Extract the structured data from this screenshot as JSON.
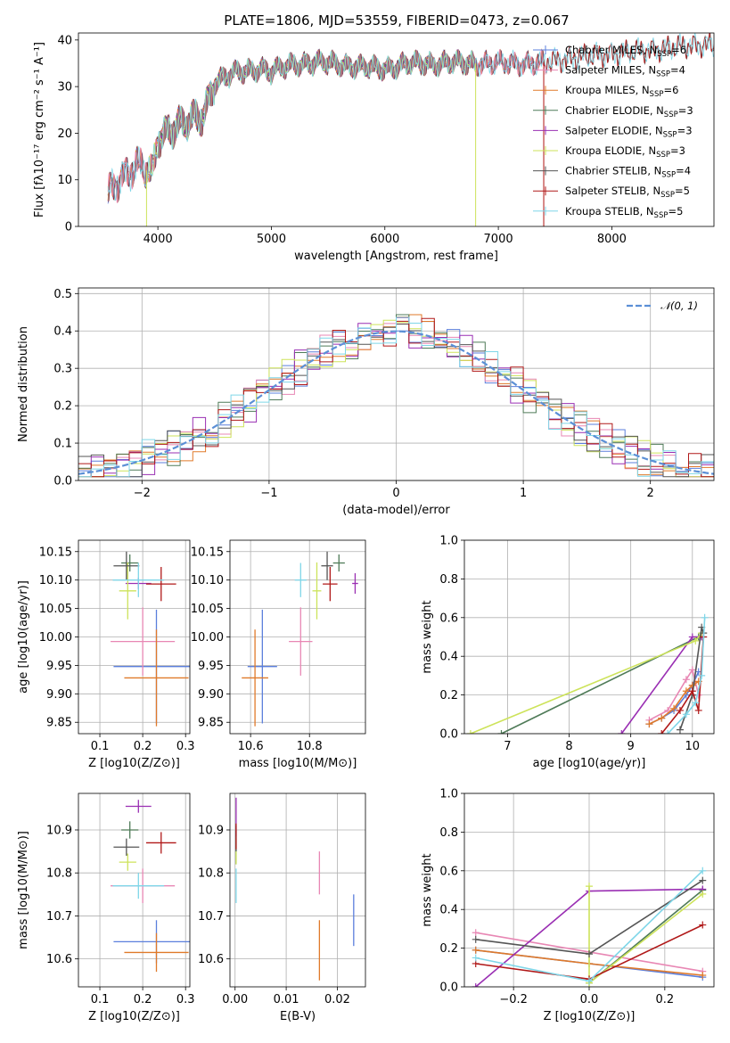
{
  "title": "PLATE=1806, MJD=53559, FIBERID=0473, z=0.067",
  "colors": {
    "Chabrier MILES": "#5b7fdc",
    "Salpeter MILES": "#e887b4",
    "Kroupa MILES": "#e07a2a",
    "Chabrier ELODIE": "#4f7b58",
    "Salpeter ELODIE": "#9a2fb3",
    "Kroupa ELODIE": "#cde35a",
    "Chabrier STELIB": "#555555",
    "Salpeter STELIB": "#b01818",
    "Kroupa STELIB": "#7fd6e8",
    "Gaussian": "#5b8fd6"
  },
  "chart_data": [
    {
      "id": "spectrum",
      "type": "line",
      "xlabel": "wavelength [Angstrom, rest frame]",
      "ylabel": "Flux [fλ10⁻¹⁷ erg cm⁻² s⁻¹ A⁻¹]",
      "xlim": [
        3300,
        8900
      ],
      "ylim": [
        0,
        41.5
      ],
      "xticks": [
        4000,
        5000,
        6000,
        7000,
        8000
      ],
      "yticks": [
        0,
        10,
        20,
        30,
        40
      ],
      "grid": false,
      "legend_position": "top-right",
      "continuum_anchors": {
        "x": [
          3560,
          3650,
          3750,
          3850,
          3950,
          4000,
          4100,
          4250,
          4400,
          4500,
          4700,
          4900,
          5000,
          5200,
          5400,
          5600,
          5800,
          6000,
          6300,
          6600,
          6800,
          7000,
          7200,
          7400,
          7600,
          8000,
          8400,
          8800
        ],
        "y": [
          7,
          10,
          12,
          13,
          11,
          19,
          21,
          22,
          24,
          31,
          33,
          34,
          33,
          35,
          35,
          35,
          34,
          34,
          35,
          35,
          35,
          35,
          35,
          35,
          36,
          37,
          38,
          39
        ]
      },
      "series": [
        {
          "name": "Chabrier MILES",
          "nssp": "6"
        },
        {
          "name": "Salpeter MILES",
          "nssp": "4"
        },
        {
          "name": "Kroupa MILES",
          "nssp": "6"
        },
        {
          "name": "Chabrier ELODIE",
          "nssp": "3"
        },
        {
          "name": "Salpeter ELODIE",
          "nssp": "3"
        },
        {
          "name": "Kroupa ELODIE",
          "nssp": "3"
        },
        {
          "name": "Chabrier STELIB",
          "nssp": "4"
        },
        {
          "name": "Salpeter STELIB",
          "nssp": "5"
        },
        {
          "name": "Kroupa STELIB",
          "nssp": "5"
        }
      ]
    },
    {
      "id": "residuals",
      "type": "histogram",
      "xlabel": "(data-model)/error",
      "ylabel": "Normed distribution",
      "xlim": [
        -2.5,
        2.5
      ],
      "ylim": [
        0,
        0.515
      ],
      "xticks": [
        -2,
        -1,
        0,
        1,
        2
      ],
      "yticks": [
        0.0,
        0.1,
        0.2,
        0.3,
        0.4,
        0.5
      ],
      "grid": true,
      "legend": [
        "𝒩(0, 1)"
      ],
      "legend_position": "top-right",
      "bin_width": 0.1,
      "bin_start": -2.5
    },
    {
      "id": "age_vs_Z",
      "type": "errorbar",
      "xlabel": "Z [log10(Z/Z⊙)]",
      "ylabel": "age  [log10(age/yr)]",
      "xlim": [
        0.05,
        0.31
      ],
      "ylim": [
        9.83,
        10.17
      ],
      "xticks": [
        0.1,
        0.2,
        0.3
      ],
      "yticks": [
        9.85,
        9.9,
        9.95,
        10.0,
        10.05,
        10.1,
        10.15
      ],
      "grid": true,
      "points": [
        {
          "series": "Chabrier MILES",
          "x": 0.232,
          "y": 9.948,
          "xerr": 0.1,
          "yerr": 0.1
        },
        {
          "series": "Salpeter MILES",
          "x": 0.2,
          "y": 9.992,
          "xerr": 0.075,
          "yerr": 0.06
        },
        {
          "series": "Kroupa MILES",
          "x": 0.232,
          "y": 9.928,
          "xerr": 0.075,
          "yerr": 0.085
        },
        {
          "series": "Chabrier ELODIE",
          "x": 0.17,
          "y": 10.13,
          "xerr": 0.02,
          "yerr": 0.015
        },
        {
          "series": "Salpeter ELODIE",
          "x": 0.19,
          "y": 10.094,
          "xerr": 0.03,
          "yerr": 0.01
        },
        {
          "series": "Kroupa ELODIE",
          "x": 0.165,
          "y": 10.081,
          "xerr": 0.02,
          "yerr": 0.05
        },
        {
          "series": "Chabrier STELIB",
          "x": 0.162,
          "y": 10.125,
          "xerr": 0.03,
          "yerr": 0.025
        },
        {
          "series": "Salpeter STELIB",
          "x": 0.243,
          "y": 10.093,
          "xerr": 0.035,
          "yerr": 0.03
        },
        {
          "series": "Kroupa STELIB",
          "x": 0.19,
          "y": 10.1,
          "xerr": 0.06,
          "yerr": 0.03
        }
      ]
    },
    {
      "id": "age_vs_mass",
      "type": "errorbar",
      "xlabel": "mass [log10(M/M⊙)]",
      "ylabel": "",
      "xlim": [
        10.53,
        10.99
      ],
      "ylim": [
        9.83,
        10.17
      ],
      "xticks": [
        10.6,
        10.8
      ],
      "yticks": [
        9.85,
        9.9,
        9.95,
        10.0,
        10.05,
        10.1,
        10.15
      ],
      "grid": true,
      "points": [
        {
          "series": "Chabrier MILES",
          "x": 10.64,
          "y": 9.948,
          "xerr": 0.05,
          "yerr": 0.1
        },
        {
          "series": "Salpeter MILES",
          "x": 10.77,
          "y": 9.992,
          "xerr": 0.04,
          "yerr": 0.06
        },
        {
          "series": "Kroupa MILES",
          "x": 10.615,
          "y": 9.928,
          "xerr": 0.045,
          "yerr": 0.085
        },
        {
          "series": "Chabrier ELODIE",
          "x": 10.9,
          "y": 10.13,
          "xerr": 0.02,
          "yerr": 0.015
        },
        {
          "series": "Salpeter ELODIE",
          "x": 10.955,
          "y": 10.094,
          "xerr": 0.01,
          "yerr": 0.018
        },
        {
          "series": "Kroupa ELODIE",
          "x": 10.825,
          "y": 10.081,
          "xerr": 0.015,
          "yerr": 0.05
        },
        {
          "series": "Chabrier STELIB",
          "x": 10.86,
          "y": 10.125,
          "xerr": 0.02,
          "yerr": 0.025
        },
        {
          "series": "Salpeter STELIB",
          "x": 10.87,
          "y": 10.093,
          "xerr": 0.025,
          "yerr": 0.03
        },
        {
          "series": "Kroupa STELIB",
          "x": 10.77,
          "y": 10.1,
          "xerr": 0.02,
          "yerr": 0.03
        }
      ]
    },
    {
      "id": "weight_vs_age",
      "type": "line",
      "xlabel": "age  [log10(age/yr)]",
      "ylabel": "mass weight",
      "xlim": [
        6.3,
        10.35
      ],
      "ylim": [
        0,
        1.0
      ],
      "xticks": [
        7,
        8,
        9,
        10
      ],
      "yticks": [
        0.0,
        0.2,
        0.4,
        0.6,
        0.8,
        1.0
      ],
      "grid": true,
      "series": [
        {
          "name": "Chabrier MILES",
          "x": [
            9.3,
            9.5,
            9.7,
            9.9,
            10.0,
            10.1
          ],
          "y": [
            0.05,
            0.08,
            0.12,
            0.2,
            0.25,
            0.32
          ]
        },
        {
          "name": "Salpeter MILES",
          "x": [
            9.3,
            9.6,
            9.9,
            10.0,
            10.1
          ],
          "y": [
            0.07,
            0.12,
            0.28,
            0.33,
            0.2
          ]
        },
        {
          "name": "Kroupa MILES",
          "x": [
            9.3,
            9.5,
            9.7,
            9.9,
            10.0,
            10.1
          ],
          "y": [
            0.05,
            0.08,
            0.13,
            0.22,
            0.25,
            0.27
          ]
        },
        {
          "name": "Chabrier ELODIE",
          "x": [
            6.9,
            10.1,
            10.15
          ],
          "y": [
            0.0,
            0.5,
            0.5
          ]
        },
        {
          "name": "Salpeter ELODIE",
          "x": [
            8.85,
            10.0,
            10.15
          ],
          "y": [
            0.0,
            0.5,
            0.5
          ]
        },
        {
          "name": "Kroupa ELODIE",
          "x": [
            6.4,
            10.05,
            10.15
          ],
          "y": [
            0.0,
            0.48,
            0.52
          ]
        },
        {
          "name": "Chabrier STELIB",
          "x": [
            9.8,
            10.0,
            10.15,
            10.18
          ],
          "y": [
            0.02,
            0.2,
            0.55,
            0.52
          ]
        },
        {
          "name": "Salpeter STELIB",
          "x": [
            9.5,
            9.8,
            10.0,
            10.1,
            10.18
          ],
          "y": [
            0.0,
            0.12,
            0.22,
            0.12,
            0.5
          ]
        },
        {
          "name": "Kroupa STELIB",
          "x": [
            9.6,
            9.9,
            10.05,
            10.15,
            10.2
          ],
          "y": [
            0.0,
            0.1,
            0.16,
            0.3,
            0.6
          ]
        }
      ]
    },
    {
      "id": "mass_vs_Z",
      "type": "errorbar",
      "xlabel": "Z [log10(Z/Z⊙)]",
      "ylabel": "mass [log10(M/M⊙)]",
      "xlim": [
        0.05,
        0.31
      ],
      "ylim": [
        10.535,
        10.985
      ],
      "xticks": [
        0.1,
        0.2,
        0.3
      ],
      "yticks": [
        10.6,
        10.7,
        10.8,
        10.9
      ],
      "grid": true,
      "points": [
        {
          "series": "Chabrier MILES",
          "x": 0.232,
          "y": 10.64,
          "xerr": 0.1,
          "yerr": 0.05
        },
        {
          "series": "Salpeter MILES",
          "x": 0.2,
          "y": 10.77,
          "xerr": 0.075,
          "yerr": 0.04
        },
        {
          "series": "Kroupa MILES",
          "x": 0.232,
          "y": 10.615,
          "xerr": 0.075,
          "yerr": 0.045
        },
        {
          "series": "Chabrier ELODIE",
          "x": 0.17,
          "y": 10.9,
          "xerr": 0.02,
          "yerr": 0.02
        },
        {
          "series": "Salpeter ELODIE",
          "x": 0.19,
          "y": 10.955,
          "xerr": 0.03,
          "yerr": 0.015
        },
        {
          "series": "Kroupa ELODIE",
          "x": 0.165,
          "y": 10.825,
          "xerr": 0.02,
          "yerr": 0.02
        },
        {
          "series": "Chabrier STELIB",
          "x": 0.162,
          "y": 10.86,
          "xerr": 0.03,
          "yerr": 0.02
        },
        {
          "series": "Salpeter STELIB",
          "x": 0.243,
          "y": 10.87,
          "xerr": 0.035,
          "yerr": 0.025
        },
        {
          "series": "Kroupa STELIB",
          "x": 0.19,
          "y": 10.77,
          "xerr": 0.06,
          "yerr": 0.03
        }
      ]
    },
    {
      "id": "mass_vs_EBV",
      "type": "errorbar",
      "xlabel": "E(B-V)",
      "ylabel": "",
      "xlim": [
        -0.001,
        0.0255
      ],
      "ylim": [
        10.535,
        10.985
      ],
      "xticks": [
        0.0,
        0.01,
        0.02
      ],
      "yticks": [
        10.6,
        10.7,
        10.8,
        10.9
      ],
      "grid": true,
      "points": [
        {
          "series": "Chabrier MILES",
          "x": 0.0232,
          "y": 10.69,
          "xerr": 0,
          "yerr": 0.06
        },
        {
          "series": "Salpeter MILES",
          "x": 0.0165,
          "y": 10.8,
          "xerr": 0,
          "yerr": 0.05
        },
        {
          "series": "Kroupa MILES",
          "x": 0.0165,
          "y": 10.62,
          "xerr": 0,
          "yerr": 0.07
        },
        {
          "series": "Chabrier ELODIE",
          "x": 0.0002,
          "y": 10.86,
          "xerr": 0,
          "yerr": 0.04
        },
        {
          "series": "Salpeter ELODIE",
          "x": 0.0002,
          "y": 10.93,
          "xerr": 0,
          "yerr": 0.045
        },
        {
          "series": "Kroupa ELODIE",
          "x": 0.0002,
          "y": 10.85,
          "xerr": 0,
          "yerr": 0.03
        },
        {
          "series": "Chabrier STELIB",
          "x": 0.0002,
          "y": 10.88,
          "xerr": 0,
          "yerr": 0.03
        },
        {
          "series": "Salpeter STELIB",
          "x": 0.0002,
          "y": 10.885,
          "xerr": 0,
          "yerr": 0.03
        },
        {
          "series": "Kroupa STELIB",
          "x": 0.0002,
          "y": 10.77,
          "xerr": 0,
          "yerr": 0.04
        }
      ]
    },
    {
      "id": "weight_vs_Z",
      "type": "line",
      "xlabel": "Z [log10(Z/Z⊙)]",
      "ylabel": "mass weight",
      "xlim": [
        -0.33,
        0.33
      ],
      "ylim": [
        0,
        1.0
      ],
      "xticks": [
        -0.2,
        0.0,
        0.2
      ],
      "yticks": [
        0.0,
        0.2,
        0.4,
        0.6,
        0.8,
        1.0
      ],
      "grid": true,
      "series": [
        {
          "name": "Chabrier MILES",
          "x": [
            -0.3,
            0.0,
            0.3
          ],
          "y": [
            0.19,
            0.12,
            0.05
          ]
        },
        {
          "name": "Salpeter MILES",
          "x": [
            -0.3,
            0.0,
            0.3
          ],
          "y": [
            0.28,
            0.18,
            0.08
          ]
        },
        {
          "name": "Kroupa MILES",
          "x": [
            -0.3,
            0.0,
            0.3
          ],
          "y": [
            0.19,
            0.12,
            0.06
          ]
        },
        {
          "name": "Chabrier ELODIE",
          "x": [
            0.0,
            0.3
          ],
          "y": [
            0.02,
            0.5
          ]
        },
        {
          "name": "Salpeter ELODIE",
          "x": [
            -0.3,
            0.0,
            0.3
          ],
          "y": [
            0.0,
            0.495,
            0.505
          ]
        },
        {
          "name": "Kroupa ELODIE",
          "x": [
            0.0,
            0.0,
            0.3
          ],
          "y": [
            0.52,
            0.02,
            0.48
          ]
        },
        {
          "name": "Chabrier STELIB",
          "x": [
            -0.3,
            0.0,
            0.3
          ],
          "y": [
            0.245,
            0.17,
            0.55
          ]
        },
        {
          "name": "Salpeter STELIB",
          "x": [
            -0.3,
            0.0,
            0.3
          ],
          "y": [
            0.12,
            0.04,
            0.32
          ]
        },
        {
          "name": "Kroupa STELIB",
          "x": [
            -0.3,
            0.0,
            0.3
          ],
          "y": [
            0.15,
            0.03,
            0.6
          ]
        }
      ]
    }
  ]
}
